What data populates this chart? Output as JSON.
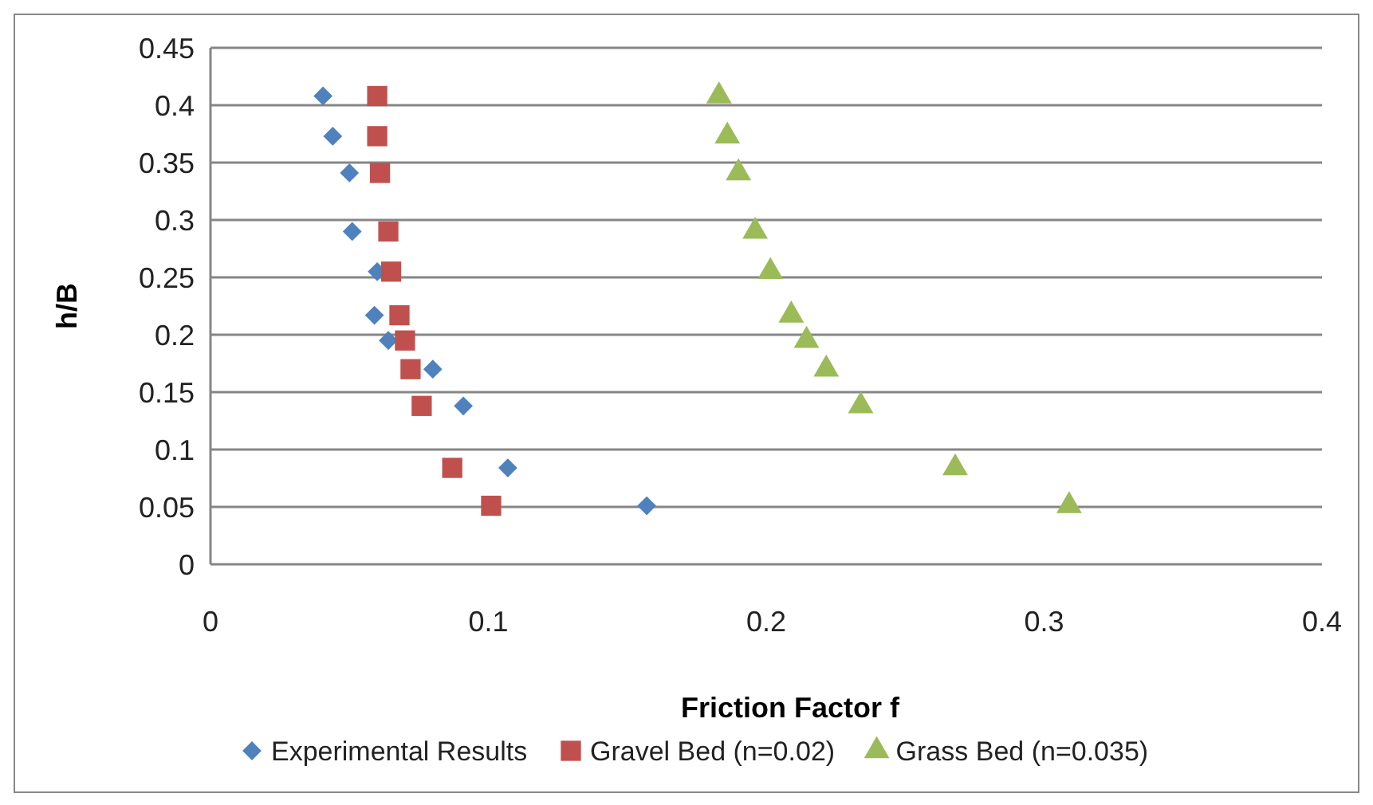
{
  "chart_data": {
    "type": "scatter",
    "xlabel": "Friction Factor f",
    "ylabel": "h/B",
    "xlim": [
      0,
      0.4
    ],
    "xticks": [
      0,
      0.1,
      0.2,
      0.3,
      0.4
    ],
    "ylim": [
      0,
      0.45
    ],
    "yticks": [
      0,
      0.05,
      0.1,
      0.15,
      0.2,
      0.25,
      0.3,
      0.35,
      0.4,
      0.45
    ],
    "grid": "y",
    "legend": "bottom",
    "series": [
      {
        "name": "Experimental Results",
        "color": "#4f81bd",
        "marker": "diamond",
        "x": [
          0.0405,
          0.044,
          0.05,
          0.051,
          0.06,
          0.059,
          0.064,
          0.08,
          0.091,
          0.107,
          0.157
        ],
        "values": [
          0.408,
          0.373,
          0.341,
          0.29,
          0.255,
          0.217,
          0.195,
          0.17,
          0.138,
          0.084,
          0.051
        ]
      },
      {
        "name": "Gravel Bed (n=0.02)",
        "color": "#c0504d",
        "marker": "square",
        "x": [
          0.06,
          0.06,
          0.061,
          0.064,
          0.065,
          0.068,
          0.07,
          0.072,
          0.076,
          0.087,
          0.101
        ],
        "values": [
          0.408,
          0.373,
          0.341,
          0.29,
          0.255,
          0.217,
          0.195,
          0.17,
          0.138,
          0.084,
          0.051
        ]
      },
      {
        "name": "Grass Bed (n=0.035)",
        "color": "#9bbb59",
        "marker": "triangle",
        "x": [
          0.183,
          0.186,
          0.19,
          0.196,
          0.2015,
          0.209,
          0.2145,
          0.2216,
          0.234,
          0.268,
          0.309
        ],
        "values": [
          0.408,
          0.373,
          0.341,
          0.29,
          0.255,
          0.217,
          0.195,
          0.17,
          0.138,
          0.084,
          0.051
        ]
      }
    ]
  }
}
